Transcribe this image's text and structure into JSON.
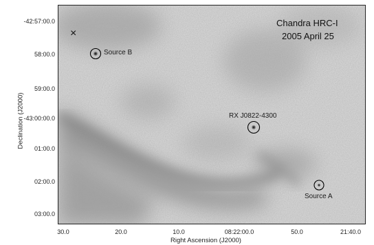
{
  "title": {
    "line1": "Chandra  HRC-I",
    "line2": "2005 April 25"
  },
  "axes": {
    "xlabel": "Right Ascension (J2000)",
    "ylabel": "Declination (J2000)",
    "x_ticks": [
      "30.0",
      "20.0",
      "10.0",
      "08:22:00.0",
      "50.0",
      "21:40.0"
    ],
    "y_ticks": [
      "-42:57:00.0",
      "58:00.0",
      "59:00.0",
      "-43:00:00.0",
      "01:00.0",
      "02:00.0",
      "03:00.0"
    ]
  },
  "sources": [
    {
      "label": "Source B"
    },
    {
      "label": "RX J0822-4300"
    },
    {
      "label": "Source A"
    }
  ],
  "marker": {
    "symbol": "×"
  },
  "colors": {
    "background_gray": "#cfcfcf",
    "dark_nebula": "#7a7a7a",
    "ink": "#111111"
  }
}
